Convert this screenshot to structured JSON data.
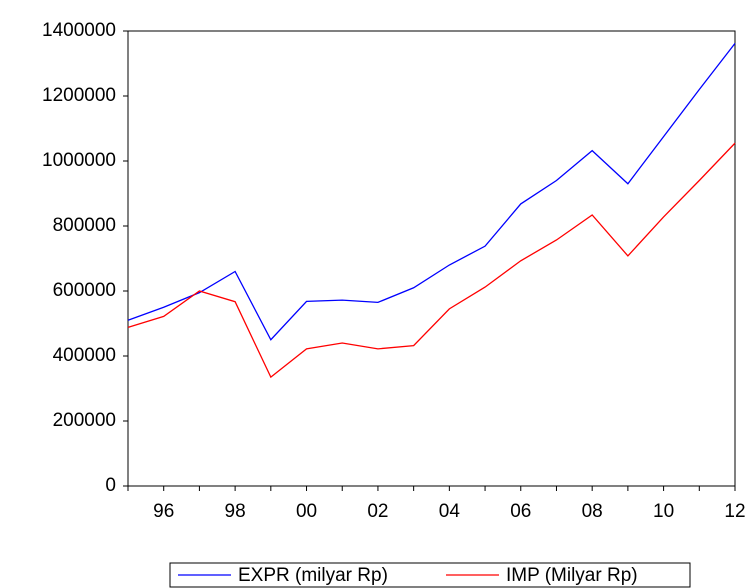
{
  "chart_data": {
    "type": "line",
    "categories": [
      null,
      "96",
      null,
      "98",
      null,
      "00",
      null,
      "02",
      null,
      "04",
      null,
      "06",
      null,
      "08",
      null,
      "10",
      null,
      "12"
    ],
    "series": [
      {
        "name": "EXPR (milyar Rp)",
        "color": "#0000ff",
        "values": [
          510000,
          550000,
          595000,
          660000,
          450000,
          568000,
          572000,
          565000,
          610000,
          680000,
          738000,
          868000,
          940000,
          1032000,
          930000,
          1075000,
          1220000,
          1362000
        ]
      },
      {
        "name": "IMP (Milyar Rp)",
        "color": "#ff0000",
        "values": [
          488000,
          522000,
          600000,
          567000,
          335000,
          422000,
          440000,
          422000,
          432000,
          545000,
          612000,
          693000,
          757000,
          834000,
          708000,
          828000,
          940000,
          1055000
        ]
      }
    ],
    "ylim": [
      0,
      1400000
    ],
    "yticks": [
      0,
      200000,
      400000,
      600000,
      800000,
      1000000,
      1200000,
      1400000
    ]
  }
}
